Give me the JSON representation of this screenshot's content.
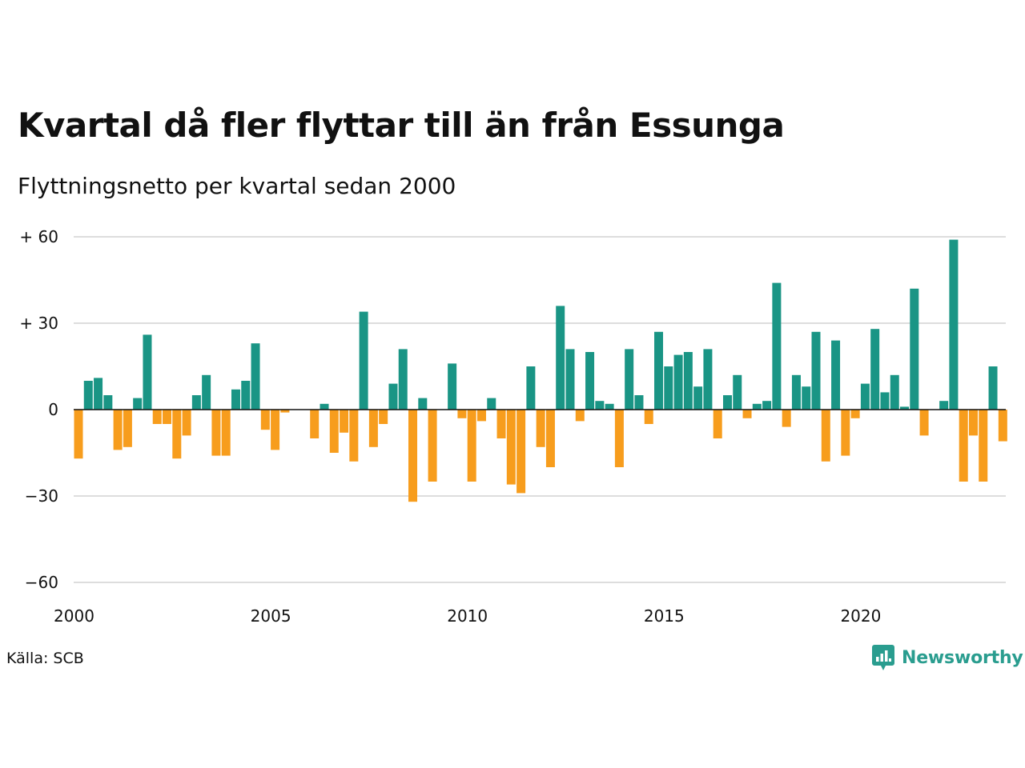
{
  "title": "Kvartal då fler flyttar till än från Essunga",
  "subtitle": "Flyttningsnetto per kvartal sedan 2000",
  "source": "Källa: SCB",
  "logo": {
    "text": "Newsworthy",
    "icon": "newsworthy-chart-bubble-icon"
  },
  "colors": {
    "positive": "#1a9585",
    "negative": "#f79d1d",
    "grid": "#dddddd",
    "zero": "#111111"
  },
  "chart_data": {
    "type": "bar",
    "x_start": 2000,
    "quarters_per_year": 4,
    "values": [
      -17,
      10,
      11,
      5,
      -14,
      -13,
      4,
      26,
      -5,
      -5,
      -17,
      -9,
      5,
      12,
      -16,
      -16,
      7,
      10,
      23,
      -7,
      -14,
      -1,
      0,
      0,
      -10,
      2,
      -15,
      -8,
      -18,
      34,
      -13,
      -5,
      9,
      21,
      -32,
      4,
      -25,
      0,
      16,
      -3,
      -25,
      -4,
      4,
      -10,
      -26,
      -29,
      15,
      -13,
      -20,
      36,
      21,
      -4,
      20,
      3,
      2,
      -20,
      21,
      5,
      -5,
      27,
      15,
      19,
      20,
      8,
      21,
      -10,
      5,
      12,
      -3,
      2,
      3,
      44,
      -6,
      12,
      8,
      27,
      -18,
      24,
      -16,
      -3,
      9,
      28,
      6,
      12,
      1,
      42,
      -9,
      0,
      3,
      59,
      -25,
      -9,
      -25,
      15,
      -11
    ],
    "ylim": [
      -60,
      60
    ],
    "y_ticks": [
      60,
      30,
      0,
      -30,
      -60
    ],
    "y_tick_labels": [
      "+ 60",
      "+ 30",
      "0",
      "−30",
      "−60"
    ],
    "x_ticks": [
      2000,
      2005,
      2010,
      2015,
      2020
    ],
    "x_tick_labels": [
      "2000",
      "2005",
      "2010",
      "2015",
      "2020"
    ],
    "grid": true,
    "legend": "none"
  }
}
